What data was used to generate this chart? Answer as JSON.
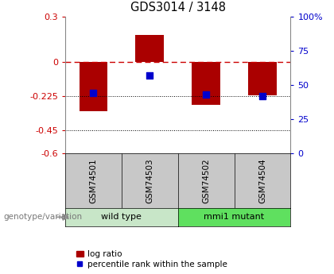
{
  "title": "GDS3014 / 3148",
  "categories": [
    "GSM74501",
    "GSM74503",
    "GSM74502",
    "GSM74504"
  ],
  "log_ratios": [
    -0.32,
    0.18,
    -0.28,
    -0.22
  ],
  "percentile_ranks": [
    44,
    57,
    43,
    42
  ],
  "groups": [
    {
      "label": "wild type",
      "indices": [
        0,
        1
      ],
      "color": "#7de87d"
    },
    {
      "label": "mmi1 mutant",
      "indices": [
        2,
        3
      ],
      "color": "#7de87d"
    }
  ],
  "group_colors": [
    "#c8e6c8",
    "#5fde5f"
  ],
  "ylim_left": [
    -0.6,
    0.3
  ],
  "ylim_right": [
    0,
    100
  ],
  "left_ticks": [
    0.3,
    0,
    -0.225,
    -0.45,
    -0.6
  ],
  "right_ticks": [
    100,
    75,
    50,
    25,
    0
  ],
  "right_tick_labels": [
    "100%",
    "75",
    "50",
    "25",
    "0"
  ],
  "dotted_lines": [
    -0.225,
    -0.45
  ],
  "bar_color": "#aa0000",
  "dot_color": "#0000cc",
  "bar_width": 0.5,
  "dot_size": 35,
  "legend_bar_label": "log ratio",
  "legend_dot_label": "percentile rank within the sample",
  "genotype_label": "genotype/variation",
  "left_axis_color": "#cc0000",
  "right_axis_color": "#0000cc",
  "sample_box_color": "#c8c8c8",
  "wild_type_color": "#c8e6c8",
  "mmi1_color": "#5fe05f"
}
